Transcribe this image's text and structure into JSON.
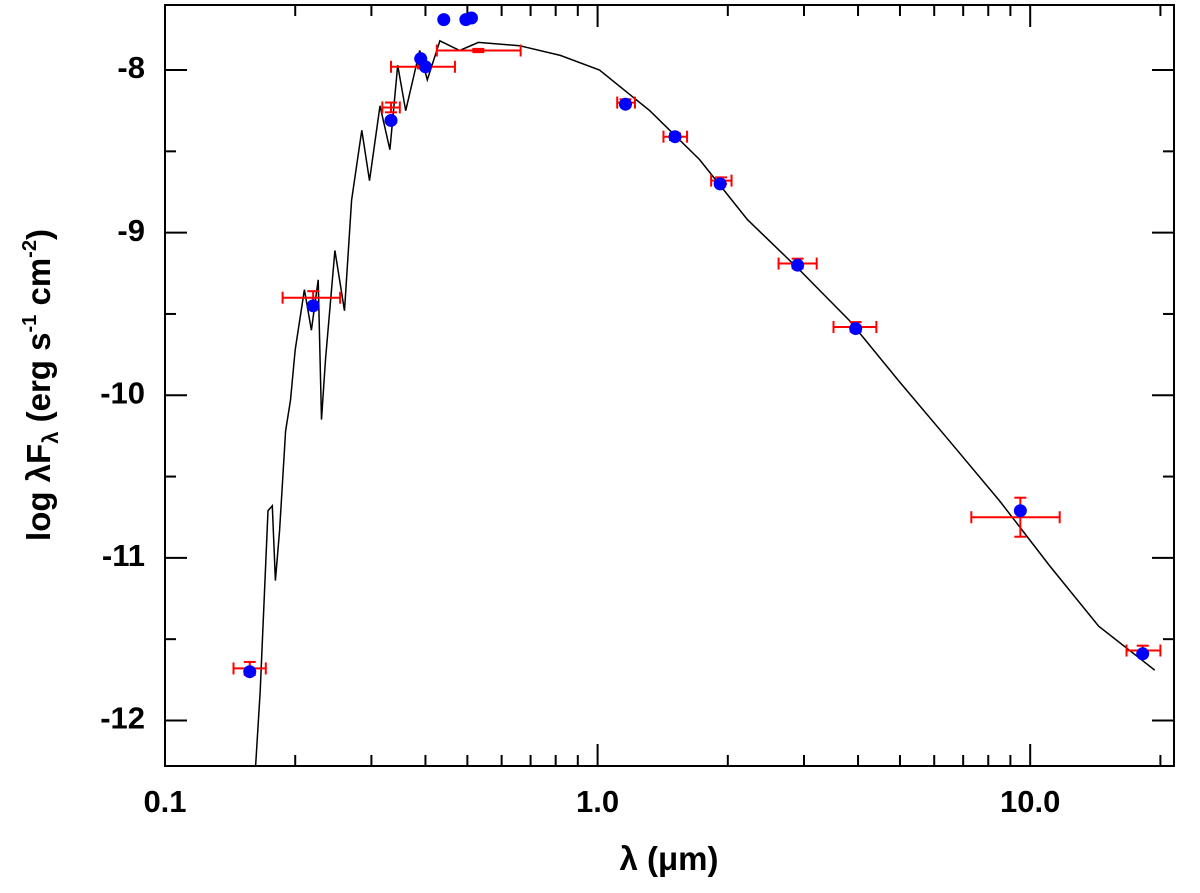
{
  "chart_data": {
    "type": "scatter",
    "xlabel": "λ (μm)",
    "ylabel": [
      "log λF",
      "λ",
      " (erg s",
      "-1",
      " cm",
      "-2",
      ")"
    ],
    "xscale": "log",
    "xlim": [
      0.1,
      21.5
    ],
    "ylim": [
      -12.28,
      -7.6
    ],
    "xticks": [
      0.1,
      {
        "value": 1,
        "label": "1.0"
      },
      {
        "value": 10,
        "label": "10.0"
      }
    ],
    "xminor_ticks": [
      0.2,
      0.3,
      0.4,
      0.5,
      0.6,
      0.7,
      0.8,
      0.9,
      2,
      3,
      4,
      5,
      6,
      7,
      8,
      9,
      20
    ],
    "yticks": [
      -12,
      -11,
      -10,
      -9,
      -8
    ],
    "yminor_ticks": [
      -11.5,
      -10.5,
      -9.5,
      -8.5,
      -7.5
    ],
    "model": {
      "color": "#000000",
      "x": [
        0.162,
        0.166,
        0.173,
        0.177,
        0.18,
        0.184,
        0.19,
        0.195,
        0.2,
        0.21,
        0.218,
        0.226,
        0.23,
        0.235,
        0.247,
        0.26,
        0.27,
        0.285,
        0.297,
        0.314,
        0.331,
        0.345,
        0.36,
        0.388,
        0.404,
        0.432,
        0.48,
        0.53,
        0.66,
        0.82,
        1.01,
        1.32,
        1.72,
        2.22,
        2.93,
        3.82,
        4.96,
        6.5,
        8.5,
        11.1,
        14.4,
        19.4
      ],
      "y": [
        -12.28,
        -11.82,
        -10.71,
        -10.68,
        -11.14,
        -10.83,
        -10.22,
        -10.03,
        -9.72,
        -9.35,
        -9.6,
        -9.29,
        -10.15,
        -9.78,
        -9.11,
        -9.48,
        -8.8,
        -8.37,
        -8.68,
        -8.22,
        -8.49,
        -7.97,
        -8.25,
        -7.88,
        -8.06,
        -7.82,
        -7.88,
        -7.83,
        -7.85,
        -7.91,
        -8.0,
        -8.25,
        -8.55,
        -8.92,
        -9.23,
        -9.54,
        -9.91,
        -10.28,
        -10.65,
        -11.05,
        -11.42,
        -11.69
      ]
    },
    "model_points": {
      "color": "#0000ff",
      "x": [
        0.157,
        0.22,
        0.333,
        0.39,
        0.4,
        0.441,
        0.496,
        0.511,
        1.16,
        1.51,
        1.92,
        2.9,
        3.95,
        9.49,
        18.2
      ],
      "y": [
        -11.7,
        -9.45,
        -8.31,
        -7.93,
        -7.98,
        -7.69,
        -7.69,
        -7.68,
        -8.21,
        -8.41,
        -8.7,
        -9.2,
        -9.59,
        -10.71,
        -11.59
      ]
    },
    "observations": {
      "color": "#ff0000",
      "x": [
        0.157,
        0.22,
        0.333,
        0.395,
        0.53,
        1.16,
        1.51,
        1.93,
        2.9,
        3.95,
        9.49,
        18.2
      ],
      "y": [
        -11.68,
        -9.4,
        -8.23,
        -7.98,
        -7.88,
        -8.2,
        -8.41,
        -8.68,
        -9.19,
        -9.58,
        -10.75,
        -11.57
      ],
      "x_low": [
        0.144,
        0.187,
        0.318,
        0.333,
        0.425,
        1.11,
        1.42,
        1.83,
        2.62,
        3.51,
        7.31,
        16.7
      ],
      "x_high": [
        0.171,
        0.254,
        0.349,
        0.468,
        0.664,
        1.22,
        1.61,
        2.04,
        3.21,
        4.41,
        11.7,
        20.0
      ],
      "y_err": [
        0.04,
        0.04,
        0.03,
        0.01,
        0.01,
        0.02,
        0.02,
        0.02,
        0.03,
        0.03,
        0.12,
        0.03
      ]
    }
  }
}
